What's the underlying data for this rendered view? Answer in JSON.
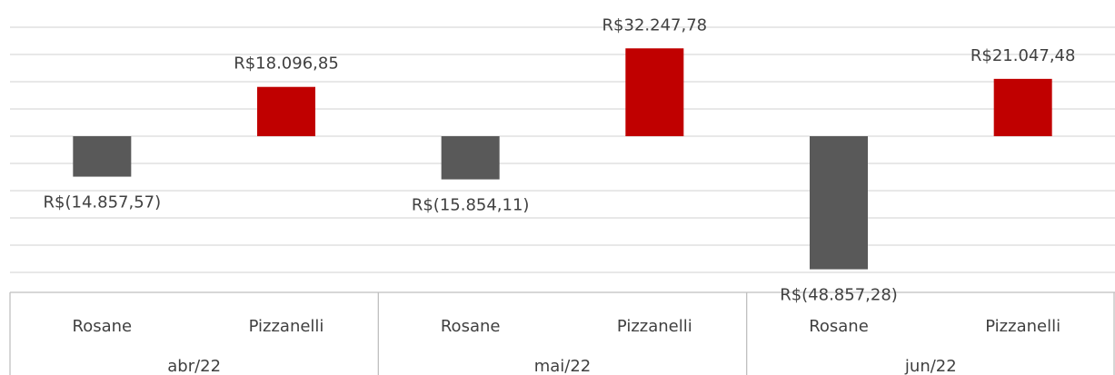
{
  "chart_data": {
    "type": "bar",
    "groups": [
      "abr/22",
      "mai/22",
      "jun/22"
    ],
    "categories": [
      "Rosane",
      "Pizzanelli",
      "Rosane",
      "Pizzanelli",
      "Rosane",
      "Pizzanelli"
    ],
    "values": [
      -14857.57,
      18096.85,
      -15854.11,
      32247.78,
      -48857.28,
      21047.48
    ],
    "value_labels": [
      "R$(14.857,57)",
      "R$18.096,85",
      "R$(15.854,11)",
      "R$32.247,78",
      "R$(48.857,28)",
      "R$21.047,48"
    ],
    "colors": [
      "#595959",
      "#c00000",
      "#595959",
      "#c00000",
      "#595959",
      "#c00000"
    ],
    "ylim": [
      -50000,
      50000
    ],
    "yticks": [
      -50000,
      -40000,
      -30000,
      -20000,
      -10000,
      0,
      10000,
      20000,
      30000,
      40000,
      50000
    ],
    "grid": true
  }
}
